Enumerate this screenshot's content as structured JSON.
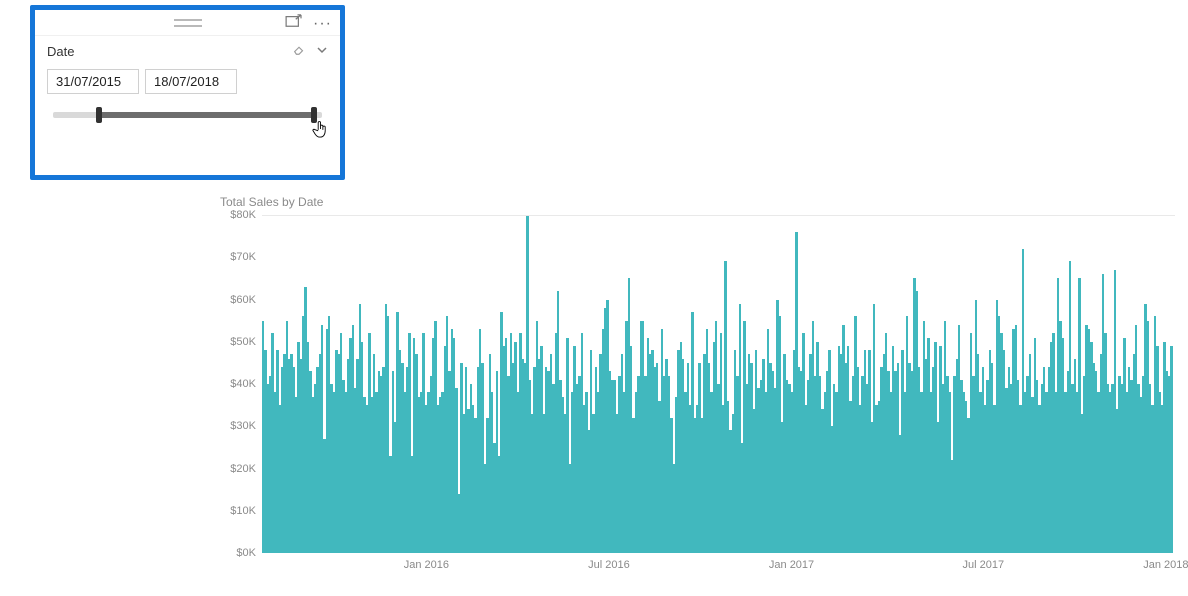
{
  "slicer": {
    "border_color": "#1576d8",
    "field_label": "Date",
    "start_value": "31/07/2015",
    "end_value": "18/07/2018",
    "slider": {
      "track_color": "#d9d9d9",
      "fill_color": "#6d6d6d",
      "thumb_color": "#323232",
      "min_pct": 17,
      "max_pct": 97
    }
  },
  "chart": {
    "type": "bar",
    "title": "Total Sales by Date",
    "title_color": "#8a8a8a",
    "title_fontsize": 12,
    "bar_color": "#41b8be",
    "background_color": "#ffffff",
    "grid_top_color": "#e9e9e9",
    "axis_label_color": "#8a8a8a",
    "axis_label_fontsize": 11,
    "ylim": [
      0,
      80
    ],
    "ytick_step": 10,
    "ytick_prefix": "$",
    "ytick_suffix": "K",
    "yticks": [
      "$0K",
      "$10K",
      "$20K",
      "$30K",
      "$40K",
      "$50K",
      "$60K",
      "$70K",
      "$80K"
    ],
    "xticks": [
      {
        "label": "Jan 2016",
        "pos_pct": 18
      },
      {
        "label": "Jul 2016",
        "pos_pct": 38
      },
      {
        "label": "Jan 2017",
        "pos_pct": 58
      },
      {
        "label": "Jul 2017",
        "pos_pct": 79
      },
      {
        "label": "Jan 2018",
        "pos_pct": 99
      }
    ],
    "values": [
      55,
      48,
      40,
      42,
      52,
      38,
      48,
      35,
      44,
      47,
      55,
      46,
      47,
      44,
      37,
      50,
      46,
      56,
      63,
      50,
      43,
      37,
      40,
      44,
      47,
      54,
      27,
      53,
      56,
      40,
      38,
      48,
      47,
      52,
      41,
      38,
      46,
      51,
      54,
      39,
      46,
      59,
      50,
      37,
      35,
      52,
      37,
      47,
      38,
      43,
      42,
      44,
      59,
      56,
      23,
      43,
      31,
      57,
      48,
      45,
      38,
      44,
      52,
      23,
      51,
      47,
      37,
      38,
      52,
      35,
      38,
      42,
      51,
      55,
      35,
      37,
      38,
      49,
      56,
      43,
      53,
      51,
      39,
      14,
      45,
      33,
      44,
      34,
      40,
      35,
      32,
      44,
      53,
      45,
      21,
      32,
      47,
      38,
      26,
      43,
      23,
      57,
      49,
      51,
      42,
      52,
      45,
      50,
      38,
      52,
      46,
      45,
      80,
      41,
      33,
      44,
      55,
      46,
      49,
      33,
      44,
      43,
      47,
      40,
      52,
      62,
      41,
      37,
      33,
      51,
      21,
      38,
      49,
      40,
      42,
      52,
      35,
      38,
      29,
      48,
      33,
      44,
      38,
      47,
      53,
      58,
      60,
      43,
      41,
      41,
      33,
      42,
      47,
      38,
      55,
      65,
      49,
      32,
      38,
      42,
      55,
      55,
      42,
      51,
      47,
      48,
      44,
      45,
      36,
      53,
      42,
      46,
      42,
      32,
      21,
      37,
      48,
      50,
      46,
      38,
      45,
      35,
      57,
      32,
      35,
      45,
      32,
      47,
      53,
      45,
      38,
      50,
      55,
      40,
      52,
      35,
      69,
      36,
      29,
      33,
      48,
      42,
      59,
      26,
      55,
      40,
      47,
      45,
      34,
      48,
      39,
      41,
      46,
      38,
      53,
      45,
      43,
      39,
      60,
      56,
      31,
      47,
      41,
      40,
      38,
      48,
      76,
      44,
      43,
      52,
      35,
      41,
      47,
      55,
      42,
      50,
      42,
      34,
      38,
      43,
      48,
      30,
      40,
      38,
      49,
      47,
      54,
      45,
      49,
      36,
      42,
      56,
      44,
      35,
      42,
      48,
      40,
      48,
      31,
      59,
      35,
      36,
      44,
      47,
      52,
      43,
      38,
      49,
      43,
      45,
      28,
      48,
      38,
      56,
      45,
      43,
      65,
      62,
      44,
      38,
      55,
      46,
      51,
      38,
      44,
      50,
      31,
      49,
      40,
      55,
      42,
      38,
      22,
      42,
      46,
      54,
      41,
      38,
      36,
      32,
      52,
      42,
      60,
      47,
      38,
      44,
      35,
      41,
      48,
      45,
      35,
      60,
      56,
      52,
      48,
      39,
      44,
      40,
      53,
      54,
      41,
      35,
      72,
      38,
      42,
      47,
      37,
      51,
      41,
      35,
      40,
      44,
      38,
      44,
      50,
      52,
      38,
      65,
      55,
      51,
      38,
      43,
      69,
      40,
      46,
      38,
      65,
      33,
      42,
      54,
      53,
      50,
      45,
      43,
      38,
      47,
      66,
      52,
      40,
      38,
      40,
      67,
      34,
      42,
      40,
      51,
      38,
      44,
      41,
      47,
      54,
      40,
      37,
      42,
      59,
      55,
      40,
      35,
      56,
      49,
      38,
      35,
      50,
      43,
      42,
      49
    ]
  }
}
